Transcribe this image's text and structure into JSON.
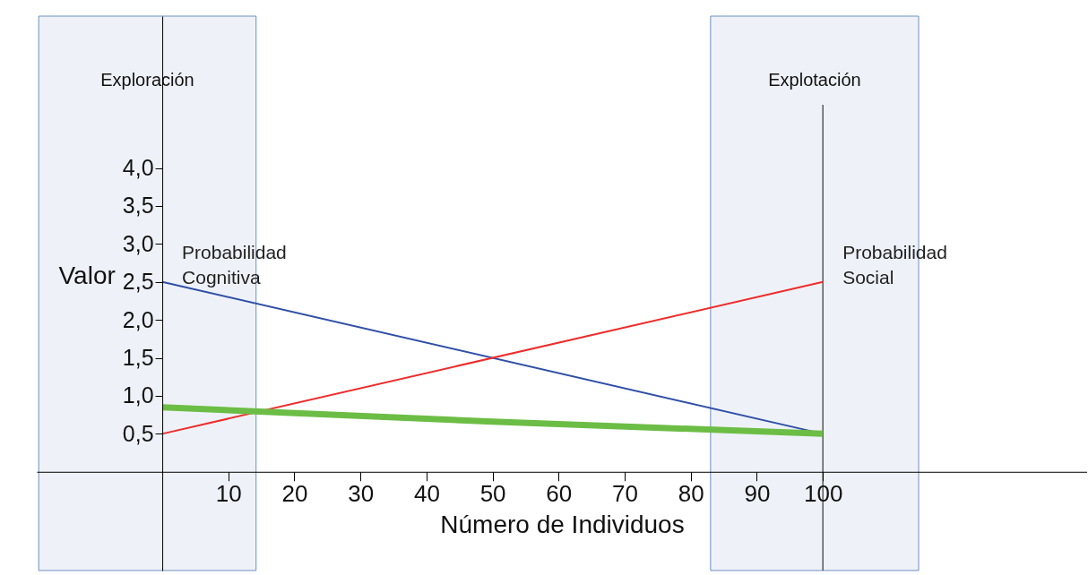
{
  "chart_data": {
    "type": "line",
    "xlabel": "Número de Individuos",
    "ylabel": "Valor",
    "series": [
      {
        "name": "Probabilidad Cognitiva",
        "color": "#2f4fa8",
        "x": [
          0,
          100
        ],
        "values": [
          2.5,
          0.5
        ]
      },
      {
        "name": "Probabilidad Social",
        "color": "#ee2c2c",
        "x": [
          0,
          100
        ],
        "values": [
          0.5,
          2.5
        ]
      },
      {
        "color": "#6cbd45",
        "x": [
          0,
          50,
          100
        ],
        "values": [
          0.85,
          0.66,
          0.5
        ]
      }
    ],
    "xlim": [
      -19,
      140
    ],
    "ylim": [
      -1.3,
      6.0
    ],
    "xticks": [
      10,
      20,
      30,
      40,
      50,
      60,
      70,
      80,
      90,
      100
    ],
    "yticks": [
      {
        "value": 0.5,
        "label": "0,5"
      },
      {
        "value": 1.0,
        "label": "1,0"
      },
      {
        "value": 1.5,
        "label": "1,5"
      },
      {
        "value": 2.0,
        "label": "2,0"
      },
      {
        "value": 2.5,
        "label": "2,5"
      },
      {
        "value": 3.0,
        "label": "3,0"
      },
      {
        "value": 3.5,
        "label": "3,5"
      },
      {
        "value": 4.0,
        "label": "4,0"
      }
    ],
    "bands": [
      {
        "axis": "x",
        "from": -18.7,
        "to": 14.2,
        "label": "Exploración",
        "color": "#eef2f8"
      },
      {
        "axis": "x",
        "from": 83.0,
        "to": 114.5,
        "label": "Explotación",
        "color": "#eef2f8"
      }
    ],
    "ref_lines": [
      {
        "axis": "x",
        "value": 100,
        "color": "#333333"
      }
    ],
    "grid": false,
    "marker": "none",
    "line_style": "solid"
  }
}
